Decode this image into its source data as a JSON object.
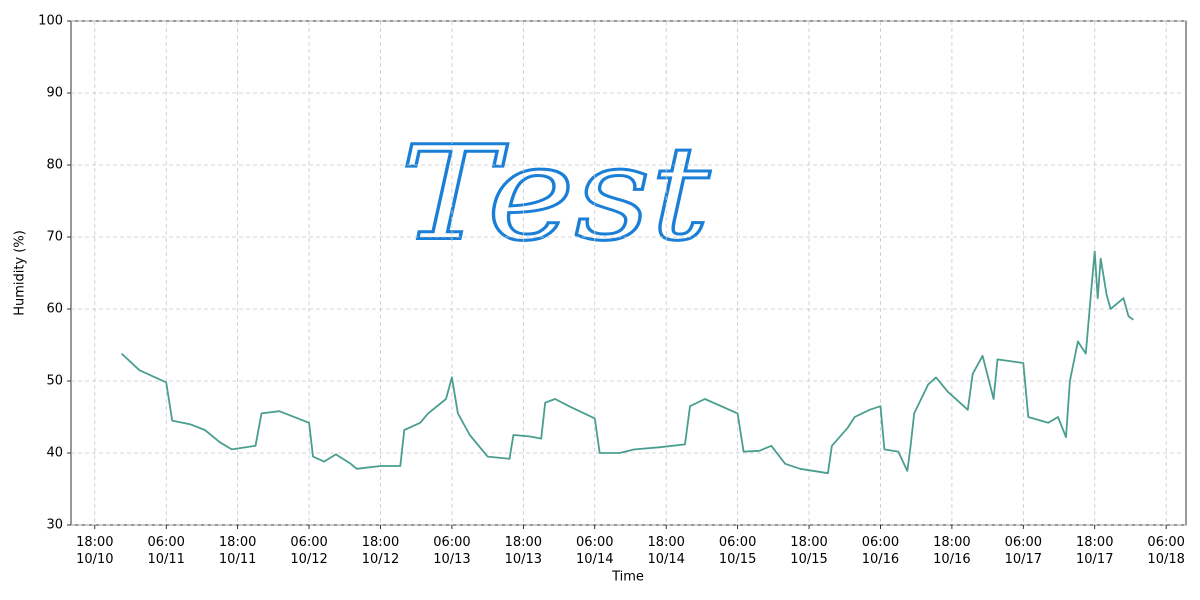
{
  "chart_data": {
    "type": "line",
    "annotation": "Test",
    "x_label": "Time",
    "y_label": "Humidity (%)",
    "xlim": [
      "10/10 14:00",
      "10/18 09:20"
    ],
    "ylim": [
      30,
      100
    ],
    "yticks": [
      30,
      40,
      50,
      60,
      70,
      80,
      90,
      100
    ],
    "xticks": [
      {
        "value": "10/10 18:00",
        "label": "18:00\n10/10"
      },
      {
        "value": "10/11 06:00",
        "label": "06:00\n10/11"
      },
      {
        "value": "10/11 18:00",
        "label": "18:00\n10/11"
      },
      {
        "value": "10/12 06:00",
        "label": "06:00\n10/12"
      },
      {
        "value": "10/12 18:00",
        "label": "18:00\n10/12"
      },
      {
        "value": "10/13 06:00",
        "label": "06:00\n10/13"
      },
      {
        "value": "10/13 18:00",
        "label": "18:00\n10/13"
      },
      {
        "value": "10/14 06:00",
        "label": "06:00\n10/14"
      },
      {
        "value": "10/14 18:00",
        "label": "18:00\n10/14"
      },
      {
        "value": "10/15 06:00",
        "label": "06:00\n10/15"
      },
      {
        "value": "10/15 18:00",
        "label": "18:00\n10/15"
      },
      {
        "value": "10/16 06:00",
        "label": "06:00\n10/16"
      },
      {
        "value": "10/16 18:00",
        "label": "18:00\n10/16"
      },
      {
        "value": "10/17 06:00",
        "label": "06:00\n10/17"
      },
      {
        "value": "10/17 18:00",
        "label": "18:00\n10/17"
      },
      {
        "value": "10/18 06:00",
        "label": "06:00\n10/18"
      }
    ],
    "grid": true,
    "color": "#4a9e90",
    "x": [
      "10/10 22:30",
      "10/11 01:30",
      "10/11 06:00",
      "10/11 07:00",
      "10/11 10:00",
      "10/11 12:30",
      "10/11 15:00",
      "10/11 17:00",
      "10/11 21:00",
      "10/11 22:00",
      "10/12 01:00",
      "10/12 06:00",
      "10/12 06:40",
      "10/12 08:30",
      "10/12 10:30",
      "10/12 13:00",
      "10/12 14:00",
      "10/12 18:00",
      "10/12 21:20",
      "10/12 22:00",
      "10/13 00:40",
      "10/13 02:00",
      "10/13 05:00",
      "10/13 06:00",
      "10/13 07:00",
      "10/13 09:00",
      "10/13 12:00",
      "10/13 15:40",
      "10/13 16:20",
      "10/13 19:00",
      "10/13 21:00",
      "10/13 21:40",
      "10/13 23:20",
      "10/14 01:40",
      "10/14 06:00",
      "10/14 06:50",
      "10/14 10:10",
      "10/14 12:40",
      "10/14 17:00",
      "10/14 21:10",
      "10/14 22:00",
      "10/15 00:30",
      "10/15 06:00",
      "10/15 07:00",
      "10/15 09:40",
      "10/15 11:40",
      "10/15 14:00",
      "10/15 16:30",
      "10/15 21:10",
      "10/15 21:50",
      "10/16 00:30",
      "10/16 01:40",
      "10/16 04:10",
      "10/16 06:00",
      "10/16 06:40",
      "10/16 09:00",
      "10/16 10:30",
      "10/16 11:00",
      "10/16 11:40",
      "10/16 14:00",
      "10/16 15:20",
      "10/16 17:20",
      "10/16 20:40",
      "10/16 21:30",
      "10/16 23:10",
      "10/17 01:00",
      "10/17 01:40",
      "10/17 06:00",
      "10/17 06:50",
      "10/17 10:10",
      "10/17 11:50",
      "10/17 13:10",
      "10/17 13:50",
      "10/17 15:10",
      "10/17 16:30",
      "10/17 17:30",
      "10/17 18:00",
      "10/17 18:30",
      "10/17 19:00",
      "10/17 20:00",
      "10/17 20:40",
      "10/17 22:50",
      "10/17 23:40",
      "10/18 00:30"
    ],
    "values": [
      53.8,
      51.5,
      49.8,
      44.5,
      44.0,
      43.2,
      41.5,
      40.5,
      41.0,
      45.5,
      45.8,
      44.2,
      39.5,
      38.8,
      39.8,
      38.5,
      37.8,
      38.2,
      38.2,
      43.2,
      44.2,
      45.5,
      47.5,
      50.5,
      45.5,
      42.5,
      39.5,
      39.2,
      42.5,
      42.3,
      42.0,
      47.0,
      47.5,
      46.5,
      44.8,
      40.0,
      40.0,
      40.5,
      40.8,
      41.2,
      46.5,
      47.5,
      45.5,
      40.2,
      40.3,
      41.0,
      38.5,
      37.8,
      37.2,
      41.0,
      43.5,
      45.0,
      46.0,
      46.5,
      40.5,
      40.2,
      37.5,
      40.5,
      45.5,
      49.5,
      50.5,
      48.5,
      46.0,
      51.0,
      53.5,
      47.5,
      53.0,
      52.5,
      45.0,
      44.2,
      45.0,
      42.2,
      50.0,
      55.5,
      53.8,
      63.5,
      68.0,
      61.5,
      67.0,
      62.0,
      60.0,
      61.5,
      59.0,
      58.5
    ]
  }
}
